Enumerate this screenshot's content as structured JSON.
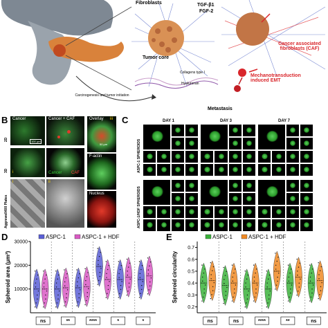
{
  "panelA": {
    "labels": {
      "fibroblasts": "Fibroblasts",
      "tgf": "TGF-β1",
      "fgf": "FGF-2",
      "tumor_core": "Tumor core",
      "collagen": "Collagens type I",
      "hyaluronan": "Hyaluronan",
      "caf": "Cancer associated fibroblasts (CAF)",
      "mechano": "Mechanotransduction induced EMT",
      "carcinogenesis": "Carcinogenesis and tumor initiation",
      "metastasis": "Metastasis"
    }
  },
  "panelB": {
    "letter": "B",
    "labels": {
      "cancer": "Cancer",
      "cancer_caf": "Cancer + CAF",
      "overlay": "Overlay",
      "factin": "F-actin",
      "nucleus": "Nucleus",
      "row2d": "2D",
      "row3d": "3D",
      "aggrewell": "Aggrewell400 Plates",
      "legend_cancer": "Cancer",
      "legend_caf": "CAF",
      "roman_i": "i",
      "roman_ii": "ii",
      "roman_iii": "iii",
      "scalebar": "100 μm",
      "scalebar2": "50 μm"
    }
  },
  "panelC": {
    "letter": "C",
    "days": [
      "DAY 1",
      "DAY 3",
      "DAY 7"
    ],
    "rows": [
      "ASPC-1 SPHEROIDS",
      "ASPC-1/HDF SPHEROIDS"
    ]
  },
  "chart_data": [
    {
      "panel": "D",
      "type": "violin",
      "ylabel": "Spheroid area (μm²)",
      "yticks": [
        10000,
        20000,
        30000
      ],
      "ylim": [
        0,
        30000
      ],
      "legend": [
        "ASPC-1",
        "ASPC-1 + HDF"
      ],
      "series": [
        {
          "name": "ASPC-1",
          "color": "#5a5fd6",
          "medians": [
            10000,
            10000,
            10500,
            19500,
            14000,
            14000
          ]
        },
        {
          "name": "ASPC-1 + HDF",
          "color": "#d95bc4",
          "medians": [
            10000,
            10500,
            11000,
            14000,
            15000,
            15500
          ]
        }
      ],
      "significance": [
        "ns",
        "**",
        "****",
        "*",
        "*"
      ]
    },
    {
      "panel": "E",
      "type": "violin",
      "ylabel": "Spheroid circularity",
      "yticks": [
        0.2,
        0.3,
        0.4,
        0.5,
        0.6,
        0.7
      ],
      "ylim": [
        0.15,
        0.75
      ],
      "legend": [
        "ASPC-1",
        "ASPC-1 + HDF"
      ],
      "series": [
        {
          "name": "ASPC-1",
          "color": "#3bb33b",
          "medians": [
            0.4,
            0.38,
            0.35,
            0.35,
            0.4,
            0.4
          ]
        },
        {
          "name": "ASPC-1 + HDF",
          "color": "#f08a24",
          "medians": [
            0.42,
            0.4,
            0.4,
            0.5,
            0.45,
            0.42
          ]
        }
      ],
      "significance": [
        "ns",
        "ns",
        "****",
        "**",
        "ns"
      ]
    }
  ]
}
